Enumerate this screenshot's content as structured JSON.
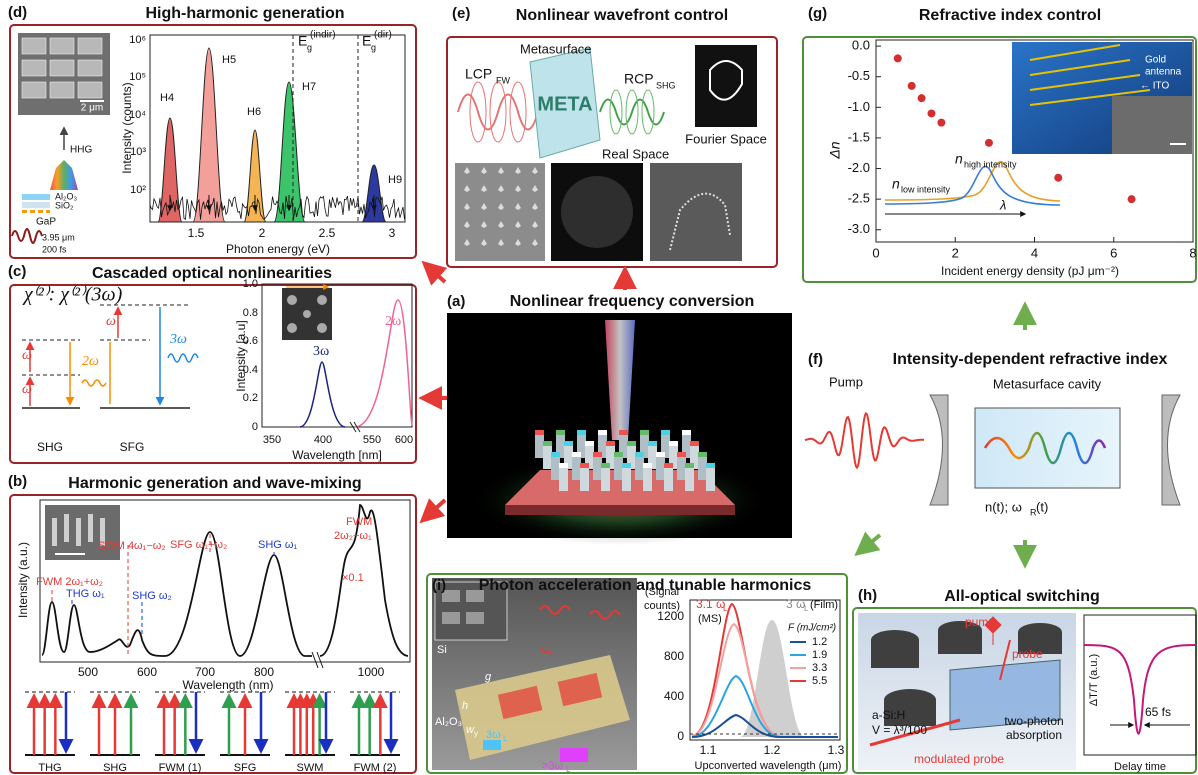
{
  "panels": {
    "d": {
      "label": "(d)",
      "title": "High-harmonic generation",
      "scale_bar": "2 μm",
      "stack": {
        "hhg": "HHG",
        "layer1": "Al₂O₃",
        "layer2": "SiO₂",
        "substrate": "GaP",
        "wavelength": "3.95 μm",
        "duration": "200 fs"
      },
      "y_label": "Intensity (counts)",
      "x_label": "Photon energy (eV)",
      "yticks": [
        "10⁶",
        "10⁵",
        "10⁴",
        "10³",
        "10²"
      ],
      "xticks": [
        "1.5",
        "2",
        "2.5",
        "3"
      ],
      "harmonics": [
        "H4",
        "H5",
        "H6",
        "H7",
        "H9"
      ],
      "gap_indirect": {
        "symbol": "E",
        "sub": "g",
        "sup": "(indir)"
      },
      "gap_direct": {
        "symbol": "E",
        "sub": "g",
        "sup": "(dir)"
      }
    },
    "e": {
      "label": "(e)",
      "title": "Nonlinear wavefront control",
      "input": {
        "main": "LCP",
        "sub": "FW"
      },
      "device": "Metasurface",
      "device_text": "META",
      "output": {
        "main": "RCP",
        "sub": "SHG"
      },
      "real_space": "Real Space",
      "fourier_space": "Fourier Space"
    },
    "g": {
      "label": "(g)",
      "title": "Refractive index control",
      "y_label": "Δn",
      "x_label": "Incident energy density (pJ μm⁻²)",
      "xlim": [
        0,
        8
      ],
      "ylim": [
        -3.2,
        0.1
      ],
      "xticks": [
        0,
        2,
        4,
        6,
        8
      ],
      "yticks": [
        {
          "value": 0,
          "label": "0.0"
        },
        -0.5,
        {
          "value": -1,
          "label": "-1.0"
        },
        -1.5,
        {
          "value": -2,
          "label": "-2.0"
        },
        -2.5,
        {
          "value": -3,
          "label": "-3.0"
        }
      ],
      "points": {
        "x": [
          0.55,
          0.9,
          1.15,
          1.4,
          1.65,
          2.85,
          4.6,
          6.45
        ],
        "y": [
          -0.2,
          -0.65,
          -0.85,
          -1.1,
          -1.25,
          -1.58,
          -2.15,
          -2.5
        ]
      },
      "inset": {
        "antenna": [
          "Gold",
          "antenna"
        ],
        "ito": "← ITO",
        "n_low": {
          "main": "n",
          "sub": "low intensity"
        },
        "n_high": {
          "main": "n",
          "sub": "high intensity"
        },
        "axis": "λ"
      }
    },
    "c": {
      "label": "(c)",
      "title": "Cascaded optical nonlinearities",
      "equation": "χ⁽²⁾: χ⁽²⁾(3ω)",
      "omega": "ω",
      "two_omega": "2ω",
      "three_omega": "3ω",
      "processes": [
        "SHG",
        "SFG"
      ],
      "y_label": "Intensity [a.u]",
      "x_label": "Wavelength [nm]",
      "yticks": [
        "0",
        "0.2",
        "0.4",
        "0.6",
        "0.8",
        "1.0"
      ],
      "xticks": [
        "350",
        "400",
        "550",
        "600"
      ],
      "peak_labels": [
        "3ω",
        "2ω"
      ]
    },
    "a": {
      "label": "(a)",
      "title": "Nonlinear frequency conversion"
    },
    "f": {
      "label": "(f)",
      "title": "Intensity-dependent refractive index",
      "pump": "Pump",
      "cavity": "Metasurface cavity",
      "state": {
        "text": "n(t); ω",
        "sub": "R",
        "tail": "(t)"
      }
    },
    "b": {
      "label": "(b)",
      "title": "Harmonic generation and wave-mixing",
      "y_label": "Intensity (a.u.)",
      "x_label": "Wavelength (nm)",
      "xticks": [
        "500",
        "600",
        "700",
        "800",
        "1000"
      ],
      "annotations": [
        "FWM 2ω₁+ω₂",
        "THG ω₁",
        "SWM 4ω₁−ω₂",
        "SHG ω₂",
        "SFG ω₁+ω₂",
        "SHG ω₁",
        "FWM",
        "2ω₂−ω₁",
        "×0.1"
      ],
      "processes": [
        "THG",
        "SHG",
        "FWM (1)",
        "SFG",
        "SWM",
        "FWM (2)"
      ]
    },
    "i": {
      "label": "(i)",
      "title": "Photon acceleration and tunable harmonics",
      "device": {
        "si": "Si",
        "alumina": "Al₂O₃",
        "gap": "g",
        "height": "h",
        "width": "w",
        "width_sub": "y",
        "pump": "ω",
        "pump_sub": "L",
        "third": "3ω",
        "third_sub": "L",
        "above": ">3ω",
        "above_sub": "L"
      },
      "y_label": [
        "(Signal",
        "counts)"
      ],
      "yticks": [
        "0",
        "400",
        "800",
        "1200"
      ],
      "xticks": [
        "1.1",
        "1.2",
        "1.3"
      ],
      "x_label": "Upconverted wavelength (μm)",
      "ms": {
        "main": "3.1 ω",
        "sub": "L",
        "tag": "(MS)"
      },
      "film": {
        "main": "3 ω",
        "sub": "L",
        "tag": "(Film)"
      },
      "legend_title": "F (mJ/cm²)",
      "legend": [
        "1.2",
        "1.9",
        "3.3",
        "5.5"
      ]
    },
    "h": {
      "label": "(h)",
      "title": "All-optical switching",
      "pump": "pump",
      "probe": "probe",
      "material": "a-Si:H",
      "volume": "V = λ³/100",
      "absorption": [
        "two-photon",
        "absorption"
      ],
      "modulated": "modulated probe",
      "y_label": "ΔT/T (a.u.)",
      "width": "65 fs",
      "x_label": "Delay time"
    }
  }
}
